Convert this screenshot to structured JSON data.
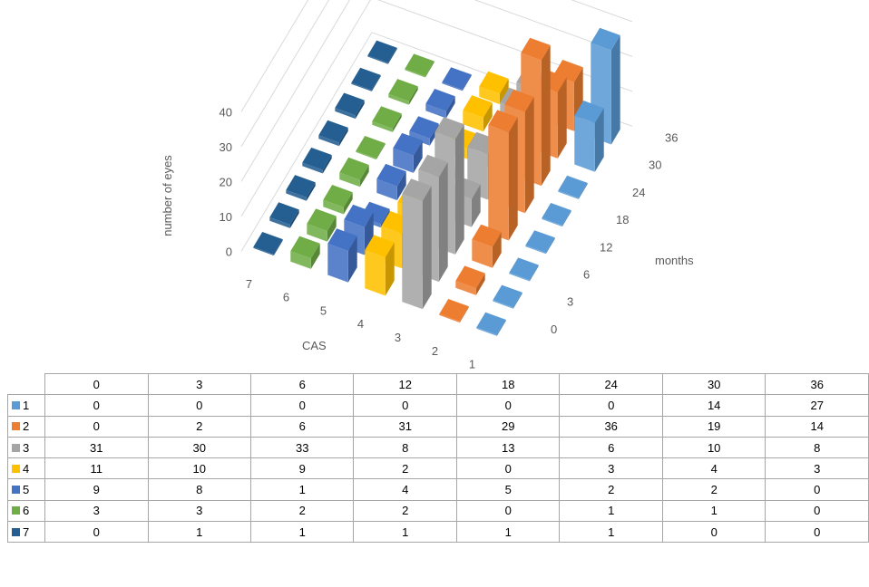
{
  "chart_data": {
    "type": "bar3d",
    "zlabel": "number of eyes",
    "xlabel": "months",
    "ylabel": "CAS",
    "zlim": [
      0,
      40
    ],
    "z_ticks": [
      "0",
      "10",
      "20",
      "30",
      "40"
    ],
    "months": [
      "0",
      "3",
      "6",
      "12",
      "18",
      "24",
      "30",
      "36"
    ],
    "series": [
      {
        "name": "1",
        "color": "#5b9bd5",
        "values": [
          0,
          0,
          0,
          0,
          0,
          0,
          14,
          27
        ]
      },
      {
        "name": "2",
        "color": "#ed7d31",
        "values": [
          0,
          2,
          6,
          31,
          29,
          36,
          19,
          14
        ]
      },
      {
        "name": "3",
        "color": "#a5a5a5",
        "values": [
          31,
          30,
          33,
          8,
          13,
          6,
          10,
          8
        ]
      },
      {
        "name": "4",
        "color": "#ffc000",
        "values": [
          11,
          10,
          9,
          2,
          0,
          3,
          4,
          3
        ]
      },
      {
        "name": "5",
        "color": "#4472c4",
        "values": [
          9,
          8,
          1,
          4,
          5,
          2,
          2,
          0
        ]
      },
      {
        "name": "6",
        "color": "#70ad47",
        "values": [
          3,
          3,
          2,
          2,
          0,
          1,
          1,
          0
        ]
      },
      {
        "name": "7",
        "color": "#255e91",
        "values": [
          0,
          1,
          1,
          1,
          1,
          1,
          0,
          0
        ]
      }
    ]
  }
}
